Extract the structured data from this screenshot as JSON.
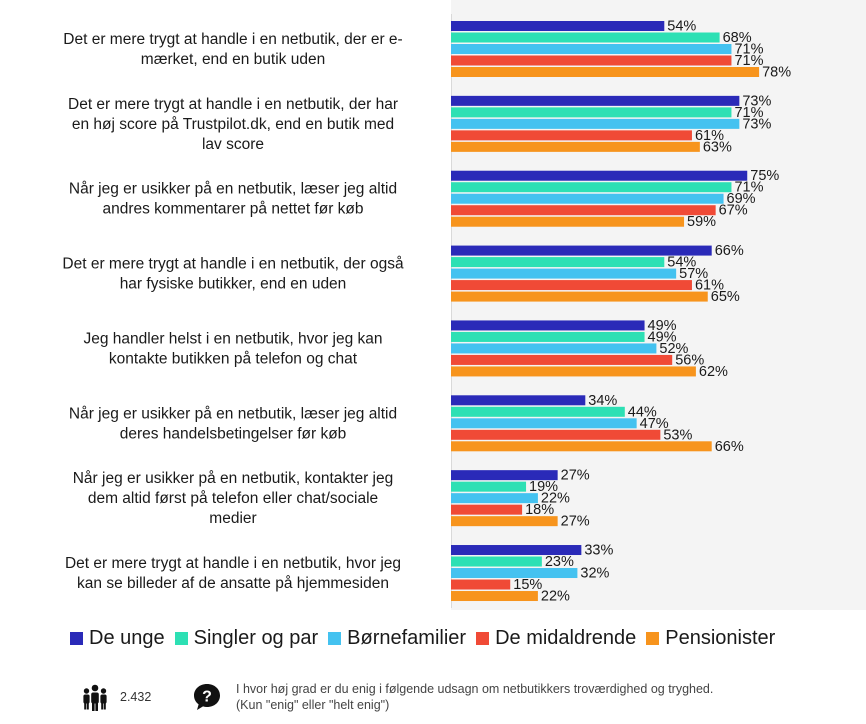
{
  "chart_data": {
    "type": "bar",
    "orientation": "horizontal",
    "categories": [
      [
        "Det er mere trygt at handle i en netbutik, der er e-",
        "mærket, end en butik uden"
      ],
      [
        "Det er mere trygt at handle i en netbutik, der har",
        "en høj score på Trustpilot.dk, end en butik med",
        "lav score"
      ],
      [
        "Når jeg er usikker på en netbutik, læser jeg altid",
        "andres kommentarer på nettet før køb"
      ],
      [
        "Det er mere trygt at handle i en netbutik, der også",
        "har fysiske butikker, end en uden"
      ],
      [
        "Jeg handler helst i en netbutik, hvor jeg kan",
        "kontakte butikken på telefon og chat"
      ],
      [
        "Når jeg er usikker på en netbutik, læser jeg altid",
        "deres handelsbetingelser før køb"
      ],
      [
        "Når jeg er usikker på en netbutik, kontakter jeg",
        "dem altid først på telefon eller chat/sociale",
        "medier"
      ],
      [
        "Det er mere trygt at handle i en netbutik, hvor jeg",
        "kan se billeder af de ansatte på hjemmesiden"
      ]
    ],
    "series": [
      {
        "name": "De unge",
        "color": "#2a2ab8",
        "values": [
          54,
          73,
          75,
          66,
          49,
          34,
          27,
          33
        ]
      },
      {
        "name": "Singler og par",
        "color": "#2de0b4",
        "values": [
          68,
          71,
          71,
          54,
          49,
          44,
          19,
          23
        ]
      },
      {
        "name": "Børnefamilier",
        "color": "#44c2f0",
        "values": [
          71,
          73,
          69,
          57,
          52,
          47,
          22,
          32
        ]
      },
      {
        "name": "De midaldrende",
        "color": "#f04a36",
        "values": [
          71,
          61,
          67,
          61,
          56,
          53,
          18,
          15
        ]
      },
      {
        "name": "Pensionister",
        "color": "#f7941d",
        "values": [
          78,
          63,
          59,
          65,
          62,
          66,
          27,
          22
        ]
      }
    ],
    "value_suffix": "%",
    "xlim": [
      0,
      100
    ],
    "grid": false,
    "legend": "bottom"
  },
  "footer": {
    "respondents_icon": "people-icon",
    "respondents": "2.432",
    "question_icon": "question-icon",
    "question_text": [
      "I hvor høj grad er du enig i følgende udsagn om netbutikkers troværdighed og tryghed.",
      "(Kun \"enig\" eller \"helt enig\")"
    ]
  }
}
